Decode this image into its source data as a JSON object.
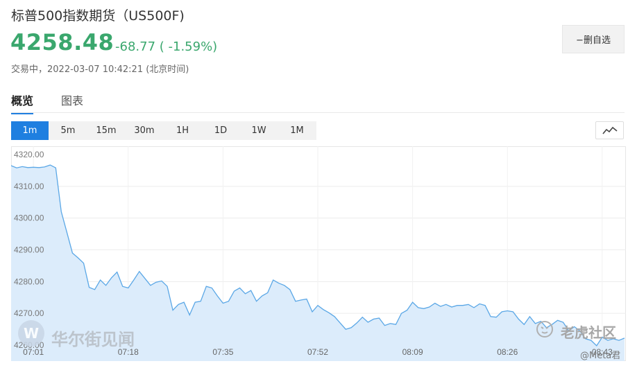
{
  "header": {
    "title": "标普500指数期货（US500F)",
    "price": "4258.48",
    "change": "-68.77 ( -1.59%)",
    "status_label": "交易中，",
    "timestamp": "2022-03-07 10:42:21",
    "timezone": "(北京时间)",
    "watch_button": "−删自选"
  },
  "tabs": [
    {
      "label": "概览",
      "active": true
    },
    {
      "label": "图表",
      "active": false
    }
  ],
  "periods": [
    {
      "label": "1m",
      "active": true
    },
    {
      "label": "5m",
      "active": false
    },
    {
      "label": "15m",
      "active": false
    },
    {
      "label": "30m",
      "active": false
    },
    {
      "label": "1H",
      "active": false
    },
    {
      "label": "1D",
      "active": false
    },
    {
      "label": "1W",
      "active": false
    },
    {
      "label": "1M",
      "active": false
    }
  ],
  "chart_type_icon": "line-chart-icon",
  "colors": {
    "up_down_green": "#3aa76d",
    "accent_blue": "#1f7fe0",
    "line": "#5aa7e6",
    "fill": "#dcecfb"
  },
  "watermarks": {
    "logo_letter": "W",
    "left_brand": "华尔街见闻",
    "right_brand": "老虎社区",
    "author": "@Meta君"
  },
  "chart_data": {
    "type": "area",
    "title": "",
    "xlabel": "",
    "ylabel": "",
    "ylim": [
      4260,
      4320
    ],
    "yticks": [
      "4320.00",
      "4310.00",
      "4300.00",
      "4290.00",
      "4280.00",
      "4270.00",
      "4260.00"
    ],
    "x_tick_labels": [
      "07:01",
      "07:18",
      "07:35",
      "07:52",
      "08:09",
      "08:26",
      "08:43"
    ],
    "x_range": [
      0,
      110
    ],
    "grid": true,
    "points": [
      [
        0,
        4316.5
      ],
      [
        1,
        4315.8
      ],
      [
        2,
        4316.2
      ],
      [
        3,
        4315.9
      ],
      [
        4,
        4316.0
      ],
      [
        5,
        4315.9
      ],
      [
        6,
        4316.1
      ],
      [
        7,
        4316.7
      ],
      [
        8,
        4315.8
      ],
      [
        9,
        4302.0
      ],
      [
        10,
        4295.5
      ],
      [
        11,
        4289.0
      ],
      [
        12,
        4287.5
      ],
      [
        13,
        4285.8
      ],
      [
        14,
        4278.2
      ],
      [
        15,
        4277.5
      ],
      [
        16,
        4280.5
      ],
      [
        17,
        4278.8
      ],
      [
        18,
        4281.2
      ],
      [
        19,
        4283.0
      ],
      [
        20,
        4278.5
      ],
      [
        21,
        4278.0
      ],
      [
        22,
        4280.5
      ],
      [
        23,
        4283.2
      ],
      [
        24,
        4281.0
      ],
      [
        25,
        4278.8
      ],
      [
        26,
        4279.8
      ],
      [
        27,
        4280.2
      ],
      [
        28,
        4278.5
      ],
      [
        29,
        4271.0
      ],
      [
        30,
        4272.8
      ],
      [
        31,
        4273.5
      ],
      [
        32,
        4269.5
      ],
      [
        33,
        4273.5
      ],
      [
        34,
        4273.8
      ],
      [
        35,
        4278.5
      ],
      [
        36,
        4278.0
      ],
      [
        37,
        4275.5
      ],
      [
        38,
        4273.2
      ],
      [
        39,
        4273.8
      ],
      [
        40,
        4277.0
      ],
      [
        41,
        4278.0
      ],
      [
        42,
        4276.2
      ],
      [
        43,
        4277.2
      ],
      [
        44,
        4273.8
      ],
      [
        45,
        4275.5
      ],
      [
        46,
        4276.5
      ],
      [
        47,
        4280.5
      ],
      [
        48,
        4279.5
      ],
      [
        49,
        4278.8
      ],
      [
        50,
        4277.5
      ],
      [
        51,
        4273.8
      ],
      [
        52,
        4274.2
      ],
      [
        53,
        4274.5
      ],
      [
        54,
        4270.5
      ],
      [
        55,
        4272.5
      ],
      [
        56,
        4271.2
      ],
      [
        57,
        4270.2
      ],
      [
        58,
        4269.0
      ],
      [
        59,
        4267.0
      ],
      [
        60,
        4265.0
      ],
      [
        61,
        4265.5
      ],
      [
        62,
        4267.0
      ],
      [
        63,
        4268.8
      ],
      [
        64,
        4267.2
      ],
      [
        65,
        4268.2
      ],
      [
        66,
        4268.5
      ],
      [
        67,
        4266.2
      ],
      [
        68,
        4266.8
      ],
      [
        69,
        4266.5
      ],
      [
        70,
        4270.0
      ],
      [
        71,
        4271.0
      ],
      [
        72,
        4273.5
      ],
      [
        73,
        4271.8
      ],
      [
        74,
        4271.5
      ],
      [
        75,
        4272.0
      ],
      [
        76,
        4273.2
      ],
      [
        77,
        4272.2
      ],
      [
        78,
        4272.8
      ],
      [
        79,
        4272.0
      ],
      [
        80,
        4272.5
      ],
      [
        81,
        4272.5
      ],
      [
        82,
        4272.8
      ],
      [
        83,
        4271.8
      ],
      [
        84,
        4273.0
      ],
      [
        85,
        4272.5
      ],
      [
        86,
        4269.0
      ],
      [
        87,
        4268.8
      ],
      [
        88,
        4270.5
      ],
      [
        89,
        4270.8
      ],
      [
        90,
        4270.5
      ],
      [
        91,
        4268.2
      ],
      [
        92,
        4266.5
      ],
      [
        93,
        4269.0
      ],
      [
        94,
        4266.8
      ],
      [
        95,
        4267.5
      ],
      [
        96,
        4265.5
      ],
      [
        97,
        4266.5
      ],
      [
        98,
        4267.8
      ],
      [
        99,
        4267.2
      ],
      [
        100,
        4264.5
      ],
      [
        101,
        4265.8
      ],
      [
        102,
        4264.5
      ],
      [
        103,
        4262.0
      ],
      [
        104,
        4261.5
      ],
      [
        105,
        4259.8
      ],
      [
        106,
        4262.5
      ],
      [
        107,
        4261.5
      ],
      [
        108,
        4262.0
      ],
      [
        109,
        4261.5
      ],
      [
        110,
        4262.2
      ]
    ]
  }
}
